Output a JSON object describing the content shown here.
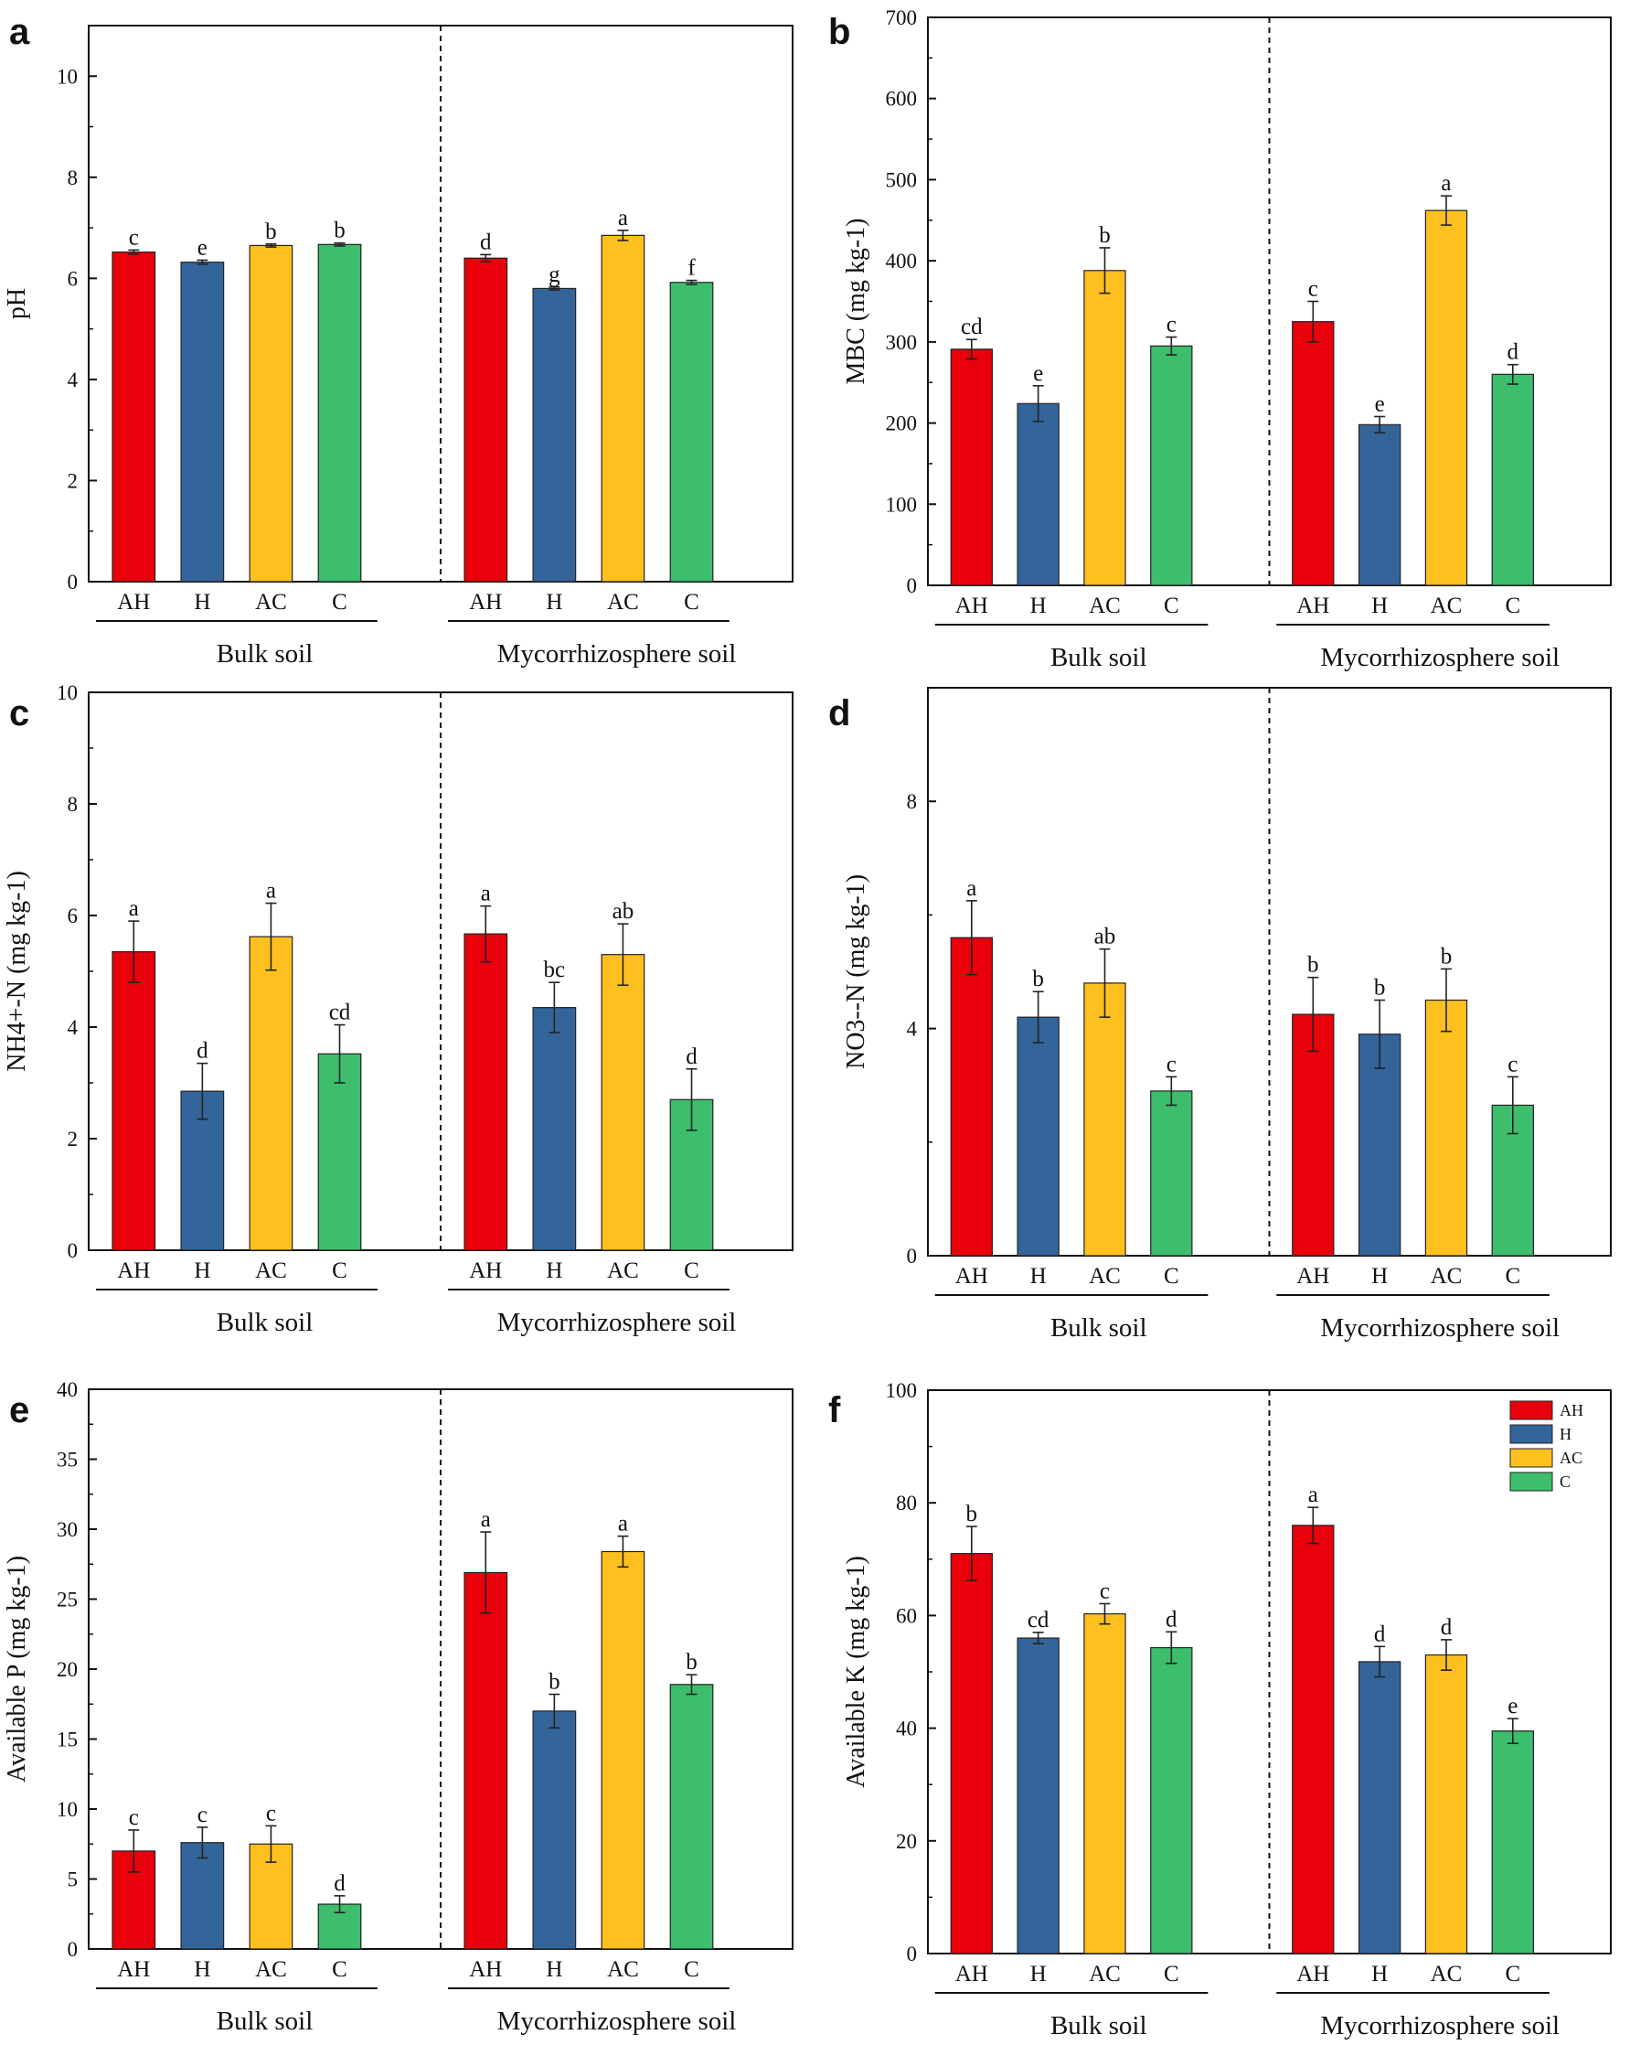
{
  "categories": [
    "AH",
    "H",
    "AC",
    "C"
  ],
  "groups": [
    "Bulk soil",
    "Mycorrhizosphere soil"
  ],
  "colors": {
    "AH": "#e8000b",
    "H": "#33659a",
    "AC": "#fec01e",
    "C": "#3cbe6c",
    "axis": "#111111"
  },
  "legend": {
    "labels": [
      "AH",
      "H",
      "AC",
      "C"
    ]
  },
  "chart_data": [
    {
      "panel": "a",
      "type": "bar",
      "title": "",
      "xlabel": "",
      "ylabel": "pH",
      "ylim": [
        0,
        11
      ],
      "ticks": [
        "0",
        "2",
        "4",
        "6",
        "8",
        "10"
      ],
      "categories": [
        "AH",
        "H",
        "AC",
        "C"
      ],
      "groups": [
        "Bulk soil",
        "Mycorrhizosphere soil"
      ],
      "series": [
        {
          "group": "Bulk soil",
          "values": [
            6.52,
            6.32,
            6.65,
            6.67
          ],
          "errors": [
            0.04,
            0.04,
            0.03,
            0.03
          ],
          "letters": [
            "c",
            "e",
            "b",
            "b"
          ]
        },
        {
          "group": "Mycorrhizosphere soil",
          "values": [
            6.4,
            5.8,
            6.85,
            5.92
          ],
          "errors": [
            0.07,
            0.03,
            0.1,
            0.04
          ],
          "letters": [
            "d",
            "g",
            "a",
            "f"
          ]
        }
      ]
    },
    {
      "panel": "b",
      "type": "bar",
      "title": "",
      "xlabel": "",
      "ylabel": "MBC  (mg kg-1)",
      "ylim": [
        0,
        700
      ],
      "ticks": [
        "0",
        "100",
        "200",
        "300",
        "400",
        "500",
        "600",
        "700"
      ],
      "categories": [
        "AH",
        "H",
        "AC",
        "C"
      ],
      "groups": [
        "Bulk soil",
        "Mycorrhizosphere soil"
      ],
      "series": [
        {
          "group": "Bulk soil",
          "values": [
            291,
            224,
            388,
            295
          ],
          "errors": [
            12,
            22,
            28,
            11
          ],
          "letters": [
            "cd",
            "e",
            "b",
            "c"
          ]
        },
        {
          "group": "Mycorrhizosphere soil",
          "values": [
            325,
            198,
            462,
            260
          ],
          "errors": [
            25,
            10,
            18,
            12
          ],
          "letters": [
            "c",
            "e",
            "a",
            "d"
          ]
        }
      ]
    },
    {
      "panel": "c",
      "type": "bar",
      "title": "",
      "xlabel": "",
      "ylabel": "NH4+-N (mg kg-1)",
      "ylim": [
        0,
        10
      ],
      "ticks": [
        "0",
        "2",
        "4",
        "6",
        "8",
        "10"
      ],
      "categories": [
        "AH",
        "H",
        "AC",
        "C"
      ],
      "groups": [
        "Bulk soil",
        "Mycorrhizosphere soil"
      ],
      "series": [
        {
          "group": "Bulk soil",
          "values": [
            5.35,
            2.85,
            5.62,
            3.52
          ],
          "errors": [
            0.55,
            0.5,
            0.6,
            0.52
          ],
          "letters": [
            "a",
            "d",
            "a",
            "cd"
          ]
        },
        {
          "group": "Mycorrhizosphere soil",
          "values": [
            5.67,
            4.35,
            5.3,
            2.7
          ],
          "errors": [
            0.5,
            0.45,
            0.55,
            0.55
          ],
          "letters": [
            "a",
            "bc",
            "ab",
            "d"
          ]
        }
      ]
    },
    {
      "panel": "d",
      "type": "bar",
      "title": "",
      "xlabel": "",
      "ylabel": "NO3--N (mg kg-1)",
      "ylim": [
        0,
        10
      ],
      "ticks": [
        "0",
        "4",
        "8"
      ],
      "categories": [
        "AH",
        "H",
        "AC",
        "C"
      ],
      "groups": [
        "Bulk soil",
        "Mycorrhizosphere soil"
      ],
      "series": [
        {
          "group": "Bulk soil",
          "values": [
            5.6,
            4.2,
            4.8,
            2.9
          ],
          "errors": [
            0.65,
            0.45,
            0.6,
            0.25
          ],
          "letters": [
            "a",
            "b",
            "ab",
            "c"
          ]
        },
        {
          "group": "Mycorrhizosphere soil",
          "values": [
            4.25,
            3.9,
            4.5,
            2.65
          ],
          "errors": [
            0.65,
            0.6,
            0.55,
            0.5
          ],
          "letters": [
            "b",
            "b",
            "b",
            "c"
          ]
        }
      ]
    },
    {
      "panel": "e",
      "type": "bar",
      "title": "",
      "xlabel": "",
      "ylabel": "Available P (mg kg-1)",
      "ylim": [
        0,
        40
      ],
      "ticks": [
        "0",
        "5",
        "10",
        "15",
        "20",
        "25",
        "30",
        "35",
        "40"
      ],
      "categories": [
        "AH",
        "H",
        "AC",
        "C"
      ],
      "groups": [
        "Bulk soil",
        "Mycorrhizosphere soil"
      ],
      "series": [
        {
          "group": "Bulk soil",
          "values": [
            7.0,
            7.6,
            7.5,
            3.2
          ],
          "errors": [
            1.5,
            1.1,
            1.3,
            0.6
          ],
          "letters": [
            "c",
            "c",
            "c",
            "d"
          ]
        },
        {
          "group": "Mycorrhizosphere soil",
          "values": [
            26.9,
            17.0,
            28.4,
            18.9
          ],
          "errors": [
            2.9,
            1.2,
            1.1,
            0.7
          ],
          "letters": [
            "a",
            "b",
            "a",
            "b"
          ]
        }
      ]
    },
    {
      "panel": "f",
      "type": "bar",
      "title": "",
      "xlabel": "",
      "ylabel": "Available K (mg kg-1)",
      "ylim": [
        0,
        100
      ],
      "ticks": [
        "0",
        "20",
        "40",
        "60",
        "80",
        "100"
      ],
      "categories": [
        "AH",
        "H",
        "AC",
        "C"
      ],
      "groups": [
        "Bulk soil",
        "Mycorrhizosphere soil"
      ],
      "series": [
        {
          "group": "Bulk soil",
          "values": [
            71,
            56,
            60.3,
            54.3
          ],
          "errors": [
            4.8,
            1.0,
            1.8,
            2.8
          ],
          "letters": [
            "b",
            "cd",
            "c",
            "d"
          ]
        },
        {
          "group": "Mycorrhizosphere soil",
          "values": [
            76,
            51.8,
            53,
            39.5
          ],
          "errors": [
            3.2,
            2.7,
            2.7,
            2.2
          ],
          "letters": [
            "a",
            "d",
            "d",
            "e"
          ]
        }
      ]
    }
  ]
}
